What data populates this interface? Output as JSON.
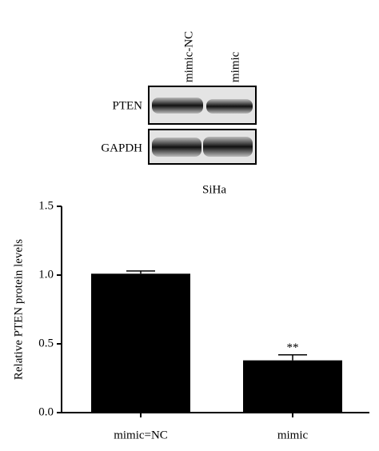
{
  "blot": {
    "lanes": [
      "mimic-NC",
      "mimic"
    ],
    "bands": [
      "PTEN",
      "GAPDH"
    ],
    "cell_line": "SiHa"
  },
  "chart_data": {
    "type": "bar",
    "y_label": "Relative PTEN protein levels",
    "categories": [
      "mimic=NC",
      "mimic"
    ],
    "values": [
      1.01,
      0.38
    ],
    "errors": [
      0.02,
      0.04
    ],
    "annotation": "**",
    "color": "#000000",
    "ylim": [
      0,
      1.5
    ],
    "yticks": [
      {
        "value": 0,
        "label": "0.0"
      },
      {
        "value": 0.5,
        "label": "0.5"
      },
      {
        "value": 1,
        "label": "1.0"
      },
      {
        "value": 1.5,
        "label": "1.5"
      }
    ]
  }
}
